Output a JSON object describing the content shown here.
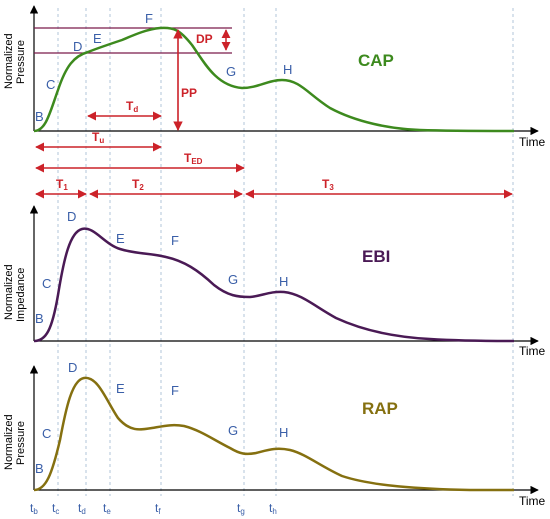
{
  "colors": {
    "cap": "#3d8a1e",
    "ebi": "#4a1a55",
    "rap": "#857010",
    "annotation": "#cc2229",
    "point_label": "#3a5fa8",
    "guide": "#b0c4d8",
    "dp_line": "#7a1a4a"
  },
  "cap": {
    "title": "CAP",
    "ylabel_line1": "Normalized",
    "ylabel_line2": "Pressure",
    "xlabel": "Time",
    "points": {
      "B": "B",
      "C": "C",
      "D": "D",
      "E": "E",
      "F": "F",
      "G": "G",
      "H": "H"
    },
    "annotations": {
      "dp": "DP",
      "pp": "PP",
      "td": {
        "main": "T",
        "sub": "d"
      },
      "tu": {
        "main": "T",
        "sub": "u"
      },
      "ted": {
        "main": "T",
        "sub": "ED"
      },
      "t1": {
        "main": "T",
        "sub": "1"
      },
      "t2": {
        "main": "T",
        "sub": "2"
      },
      "t3": {
        "main": "T",
        "sub": "3"
      }
    }
  },
  "ebi": {
    "title": "EBI",
    "ylabel_line1": "Normalized",
    "ylabel_line2": "Impedance",
    "xlabel": "Time",
    "points": {
      "B": "B",
      "C": "C",
      "D": "D",
      "E": "E",
      "F": "F",
      "G": "G",
      "H": "H"
    }
  },
  "rap": {
    "title": "RAP",
    "ylabel_line1": "Normalized",
    "ylabel_line2": "Pressure",
    "xlabel": "Time",
    "points": {
      "B": "B",
      "C": "C",
      "D": "D",
      "E": "E",
      "F": "F",
      "G": "G",
      "H": "H"
    }
  },
  "time_ticks": [
    {
      "main": "t",
      "sub": "b"
    },
    {
      "main": "t",
      "sub": "c"
    },
    {
      "main": "t",
      "sub": "d"
    },
    {
      "main": "t",
      "sub": "e"
    },
    {
      "main": "t",
      "sub": "f"
    },
    {
      "main": "t",
      "sub": "g"
    },
    {
      "main": "t",
      "sub": "h"
    }
  ]
}
